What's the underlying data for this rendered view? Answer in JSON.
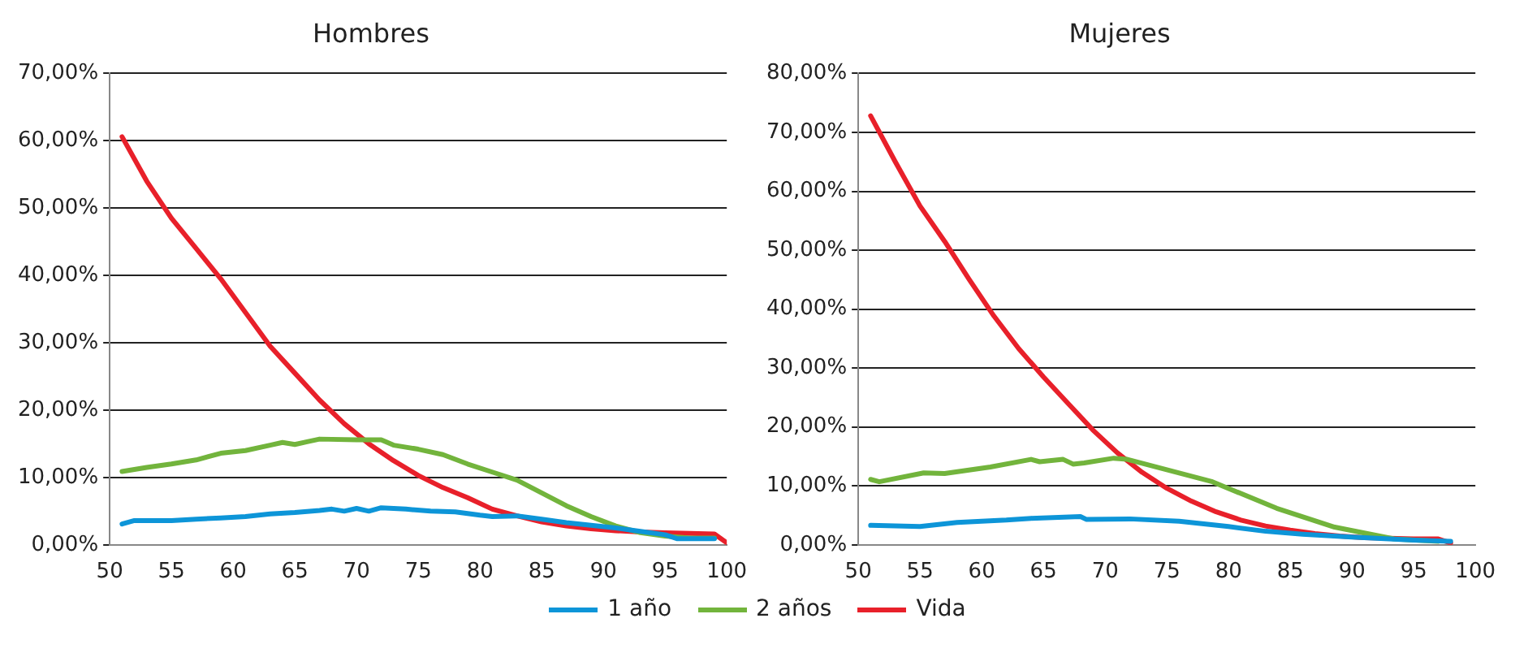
{
  "chart_data": [
    {
      "type": "line",
      "title": "Hombres",
      "xlim": [
        50,
        100
      ],
      "xticks": [
        50,
        55,
        60,
        65,
        70,
        75,
        80,
        85,
        90,
        95,
        100
      ],
      "ylim": [
        0,
        70
      ],
      "yticks": [
        {
          "value": 0,
          "label": "0,00%"
        },
        {
          "value": 10,
          "label": "10,00%"
        },
        {
          "value": 20,
          "label": "20,00%"
        },
        {
          "value": 30,
          "label": "30,00%"
        },
        {
          "value": 40,
          "label": "40,00%"
        },
        {
          "value": 50,
          "label": "50,00%"
        },
        {
          "value": 60,
          "label": "60,00%"
        },
        {
          "value": 70,
          "label": "70,00%"
        }
      ],
      "grid": "y",
      "legend": "bottom",
      "marker": "none",
      "line_style": "solid",
      "series": [
        {
          "name": "1 año",
          "color": "#0d95d8",
          "x": [
            51,
            52,
            55,
            57,
            59,
            61,
            63,
            65,
            67,
            68,
            69,
            70,
            71,
            72,
            74,
            76,
            78,
            80,
            81,
            83,
            85,
            87,
            89,
            91,
            93,
            95,
            96,
            99
          ],
          "values": [
            3.1,
            3.6,
            3.6,
            3.8,
            4,
            4.2,
            4.6,
            4.8,
            5.1,
            5.3,
            5,
            5.4,
            5,
            5.5,
            5.3,
            5,
            4.9,
            4.4,
            4.2,
            4.3,
            3.8,
            3.3,
            2.9,
            2.5,
            2,
            1.5,
            0.9,
            0.9
          ]
        },
        {
          "name": "2 años",
          "color": "#72b43c",
          "x": [
            51,
            53,
            55,
            57,
            59,
            61,
            63,
            64,
            65,
            66,
            67,
            70,
            72,
            73,
            75,
            77,
            79,
            81,
            83,
            85,
            87,
            89,
            91,
            93,
            95,
            97,
            99
          ],
          "values": [
            10.9,
            11.5,
            12,
            12.6,
            13.6,
            14,
            14.8,
            15.2,
            14.9,
            15.3,
            15.7,
            15.6,
            15.6,
            14.8,
            14.2,
            13.4,
            12,
            10.8,
            9.6,
            7.7,
            5.8,
            4.2,
            2.8,
            1.8,
            1.3,
            1,
            1
          ]
        },
        {
          "name": "Vida",
          "color": "#e8202a",
          "x": [
            51,
            53,
            55,
            57,
            59,
            61,
            63,
            65,
            67,
            69,
            71,
            73,
            75,
            77,
            79,
            81,
            83,
            85,
            87,
            89,
            91,
            93,
            95,
            97,
            99,
            100
          ],
          "values": [
            60.6,
            54,
            48.5,
            44,
            39.5,
            34.5,
            29.5,
            25.5,
            21.5,
            18,
            15,
            12.5,
            10.3,
            8.5,
            7,
            5.3,
            4.3,
            3.4,
            2.8,
            2.4,
            2.1,
            1.9,
            1.8,
            1.7,
            1.6,
            0.3
          ]
        }
      ]
    },
    {
      "type": "line",
      "title": "Mujeres",
      "xlim": [
        50,
        100
      ],
      "xticks": [
        50,
        55,
        60,
        65,
        70,
        75,
        80,
        85,
        90,
        95,
        100
      ],
      "ylim": [
        0,
        80
      ],
      "yticks": [
        {
          "value": 0,
          "label": "0,00%"
        },
        {
          "value": 10,
          "label": "10,00%"
        },
        {
          "value": 20,
          "label": "20,00%"
        },
        {
          "value": 30,
          "label": "30,00%"
        },
        {
          "value": 40,
          "label": "40,00%"
        },
        {
          "value": 50,
          "label": "50,00%"
        },
        {
          "value": 60,
          "label": "60,00%"
        },
        {
          "value": 70,
          "label": "70,00%"
        },
        {
          "value": 80,
          "label": "80,00%"
        }
      ],
      "grid": "y",
      "marker": "none",
      "line_style": "solid",
      "series": [
        {
          "color": "#0d95d8",
          "x": [
            51,
            55,
            58,
            62,
            64,
            68,
            68.5,
            72,
            76,
            80,
            83,
            86,
            90,
            95,
            98
          ],
          "values": [
            3.3,
            3.1,
            3.8,
            4.2,
            4.5,
            4.8,
            4.3,
            4.4,
            4,
            3.1,
            2.3,
            1.8,
            1.3,
            0.8,
            0.6
          ]
        },
        {
          "color": "#72b43c",
          "x": [
            51,
            51.7,
            55.3,
            57,
            60.7,
            64,
            64.7,
            66.6,
            67.4,
            68.3,
            70.7,
            71.8,
            78.7,
            83.9,
            88.6,
            93.4,
            97
          ],
          "values": [
            11.1,
            10.7,
            12.2,
            12.1,
            13.2,
            14.5,
            14.1,
            14.5,
            13.7,
            13.9,
            14.7,
            14.5,
            10.7,
            6.2,
            3,
            1,
            0.6
          ]
        },
        {
          "color": "#e8202a",
          "x": [
            51,
            53,
            55,
            57,
            59,
            61,
            63,
            65,
            67,
            69,
            71,
            73,
            75,
            77,
            79,
            81,
            83,
            85,
            87,
            89,
            91,
            93,
            95,
            97,
            98
          ],
          "values": [
            72.8,
            65,
            57.5,
            51.5,
            45,
            38.8,
            33.3,
            28.5,
            24,
            19.5,
            15.6,
            12.3,
            9.6,
            7.4,
            5.6,
            4.2,
            3.2,
            2.5,
            1.9,
            1.5,
            1.2,
            1.1,
            1,
            1,
            0.3
          ]
        }
      ]
    }
  ]
}
